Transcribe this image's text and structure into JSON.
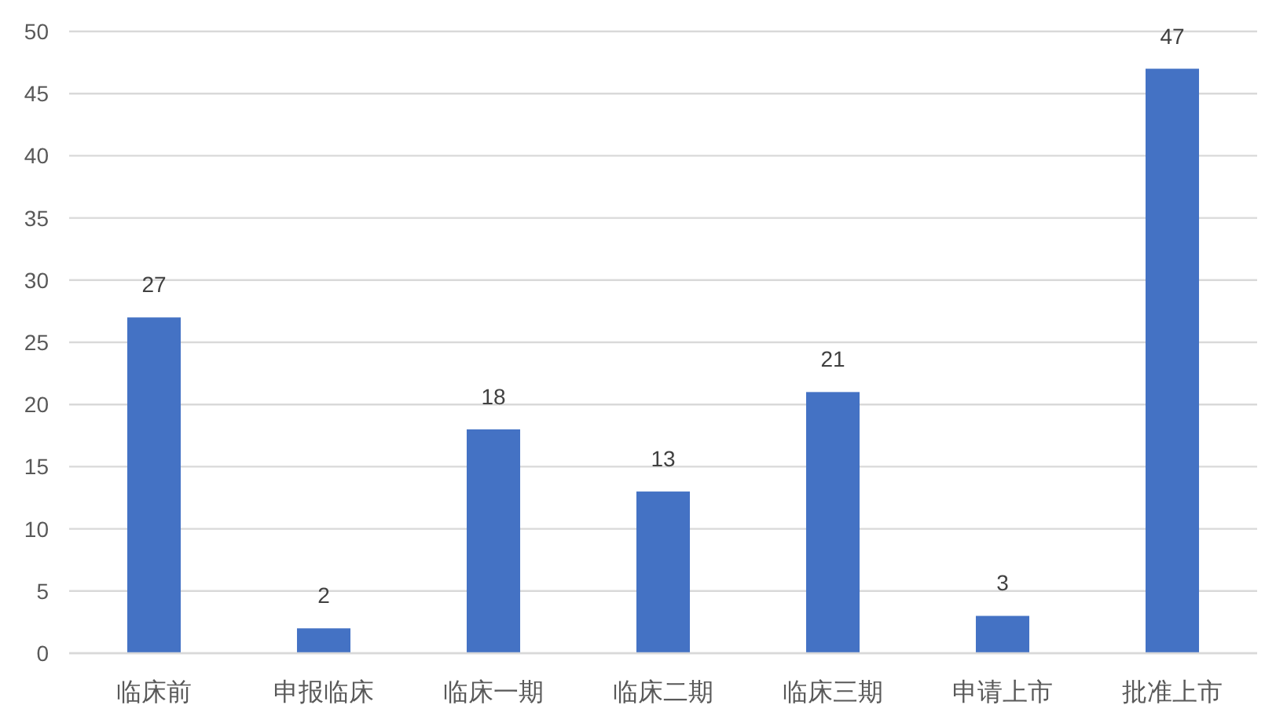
{
  "chart_data": {
    "type": "bar",
    "categories": [
      "临床前",
      "申报临床",
      "临床一期",
      "临床二期",
      "临床三期",
      "申请上市",
      "批准上市"
    ],
    "values": [
      27,
      2,
      18,
      13,
      21,
      3,
      47
    ],
    "color": "#4472c4",
    "ylim": [
      0,
      50
    ],
    "yticks": [
      0,
      5,
      10,
      15,
      20,
      25,
      30,
      35,
      40,
      45,
      50
    ],
    "grid": "y",
    "data_labels": true
  }
}
